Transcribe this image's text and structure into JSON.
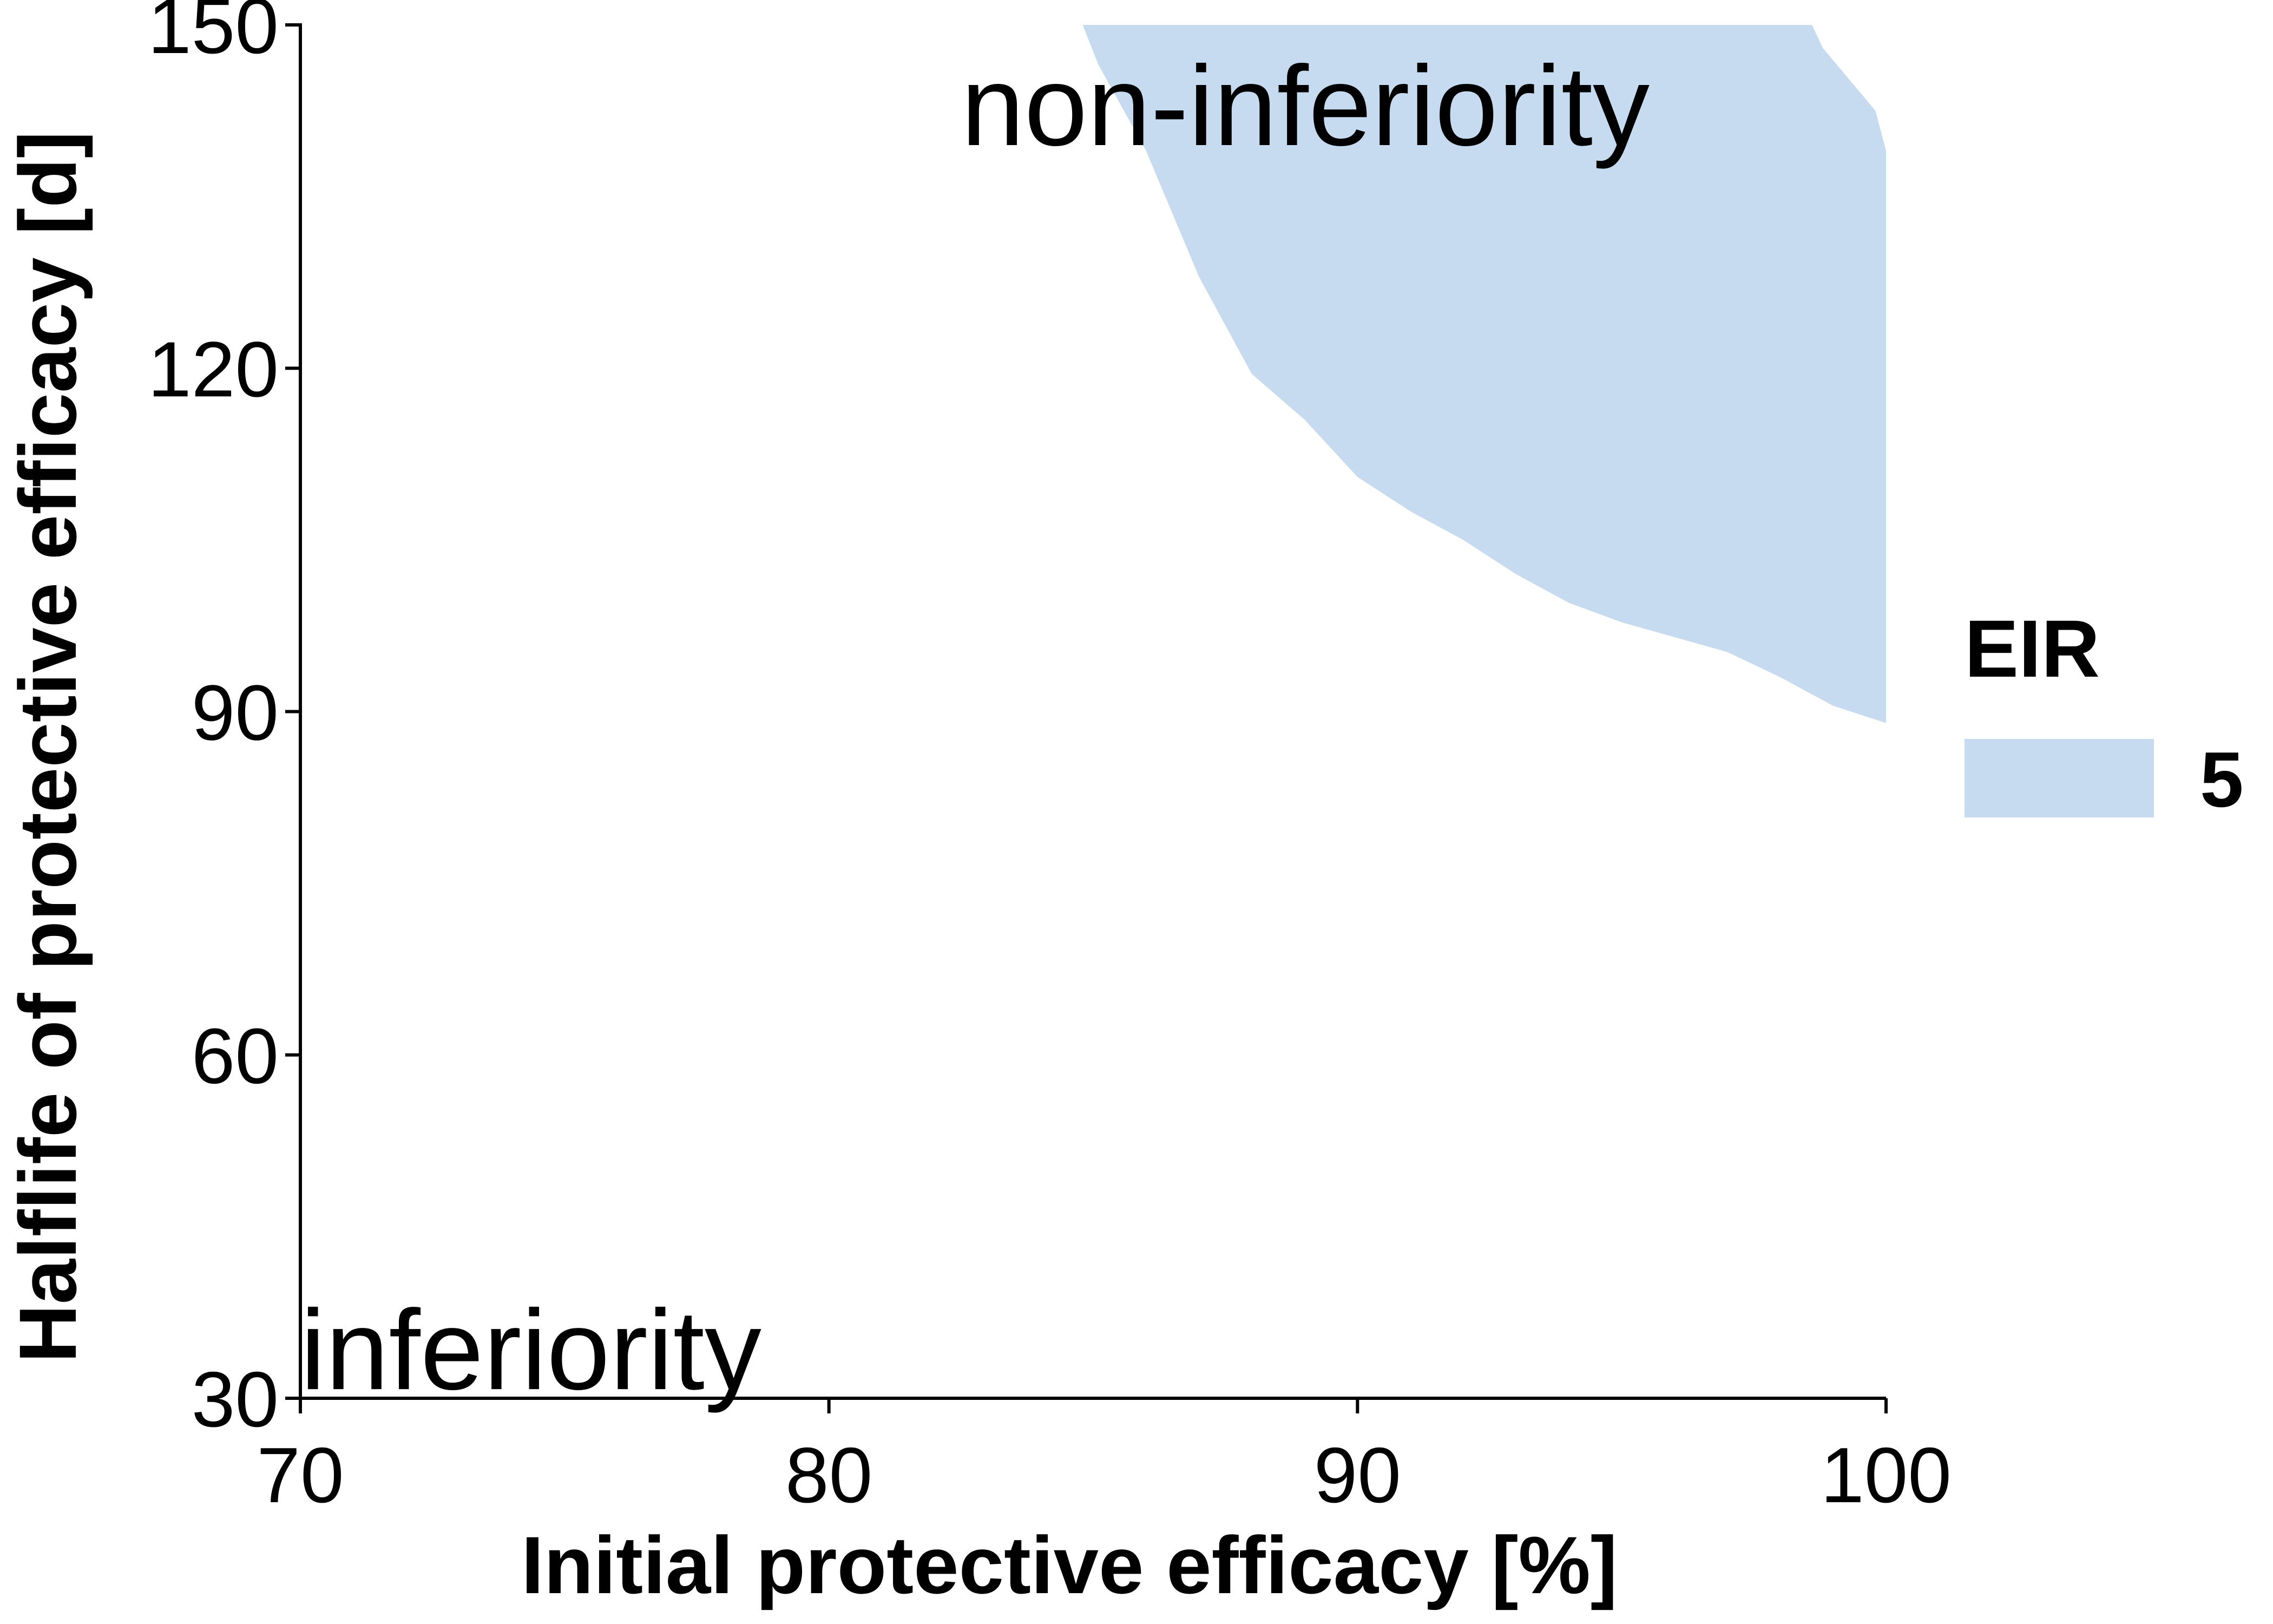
{
  "chart_data": {
    "type": "area",
    "xlabel": "Initial protective efficacy [%]",
    "ylabel": "Halflife of protective efficacy [d]",
    "xlim": [
      70,
      100
    ],
    "ylim": [
      30,
      150
    ],
    "xticks": [
      70,
      80,
      90,
      100
    ],
    "yticks": [
      30,
      60,
      90,
      120,
      150
    ],
    "grid": false,
    "legend": {
      "title": "EIR",
      "position": "right",
      "entries": [
        {
          "label": "5",
          "color": "#c6dbef"
        }
      ]
    },
    "annotations": [
      {
        "text": "non-inferiority",
        "x": 82.5,
        "y": 139.5
      },
      {
        "text": "inferiority",
        "x": 70,
        "y": 30.8
      }
    ],
    "series": [
      {
        "name": "5",
        "color": "#c6dbef",
        "region": "non-inferiority",
        "boundary": [
          {
            "x": 84.8,
            "y": 150
          },
          {
            "x": 85.1,
            "y": 146.5
          },
          {
            "x": 86.0,
            "y": 139
          },
          {
            "x": 87.0,
            "y": 128
          },
          {
            "x": 88.0,
            "y": 119.5
          },
          {
            "x": 89.0,
            "y": 115.5
          },
          {
            "x": 90.0,
            "y": 110.5
          },
          {
            "x": 91.0,
            "y": 107.5
          },
          {
            "x": 92.0,
            "y": 105
          },
          {
            "x": 93.0,
            "y": 102
          },
          {
            "x": 94.0,
            "y": 99.5
          },
          {
            "x": 95.0,
            "y": 97.8
          },
          {
            "x": 96.0,
            "y": 96.5
          },
          {
            "x": 97.0,
            "y": 95.2
          },
          {
            "x": 98.0,
            "y": 93
          },
          {
            "x": 99.0,
            "y": 90.5
          },
          {
            "x": 100.0,
            "y": 89
          },
          {
            "x": 100.0,
            "y": 139
          },
          {
            "x": 99.8,
            "y": 142.5
          },
          {
            "x": 98.8,
            "y": 148
          },
          {
            "x": 98.6,
            "y": 150
          }
        ]
      }
    ]
  }
}
